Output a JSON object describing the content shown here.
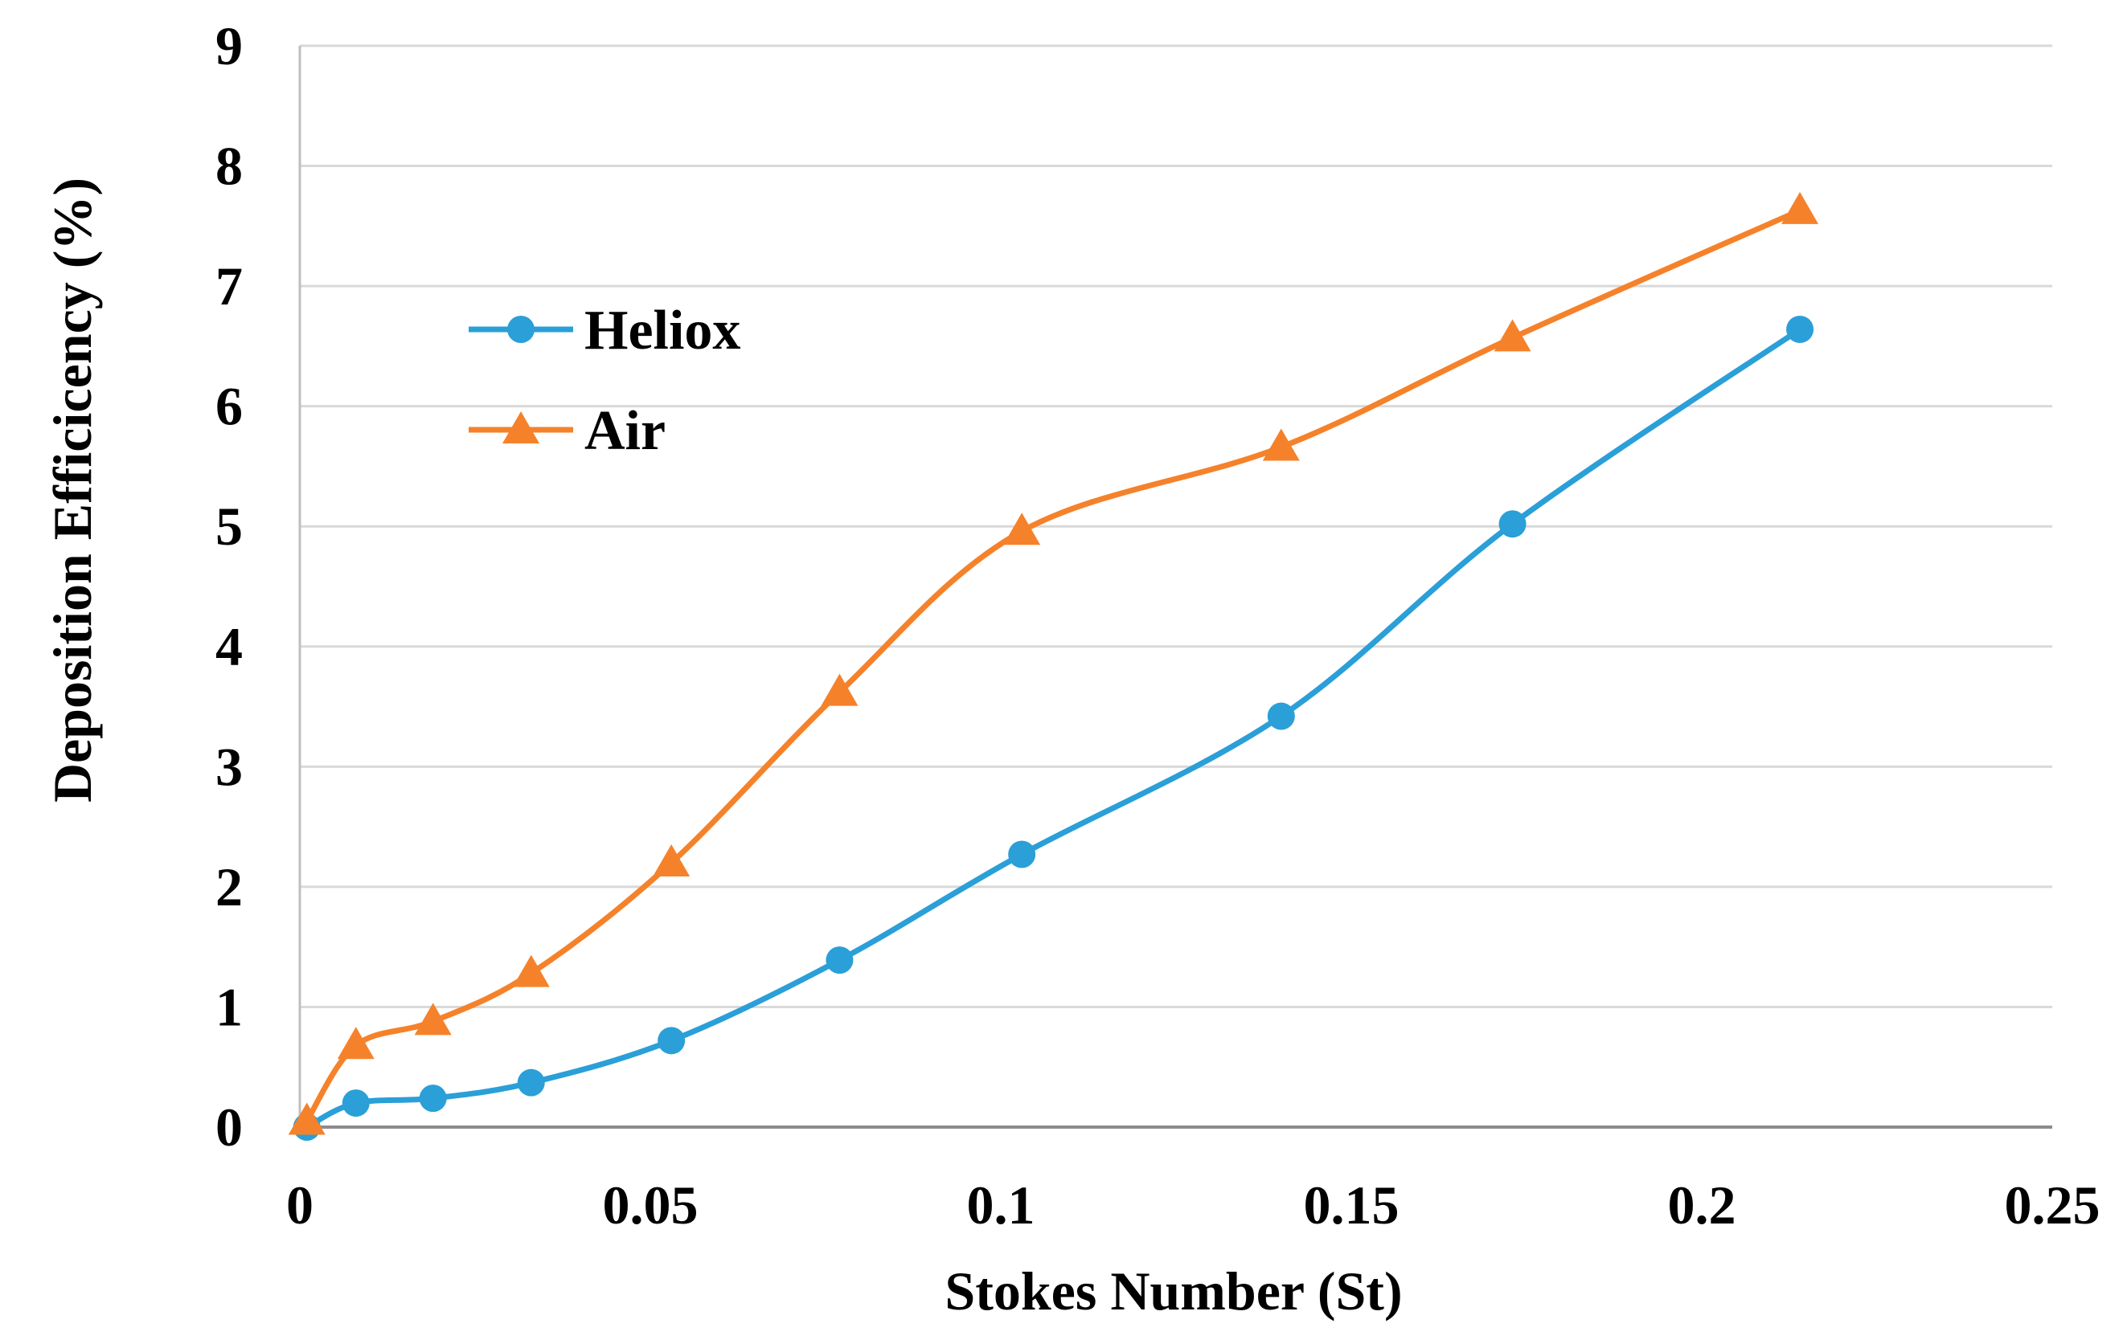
{
  "chart_data": {
    "type": "line",
    "title": "",
    "xlabel": "Stokes Number (St)",
    "ylabel": "Deposition Efficicency (%)",
    "xlim": [
      0,
      0.25
    ],
    "ylim": [
      0,
      9
    ],
    "x_ticks": [
      "0",
      "0.05",
      "0.1",
      "0.15",
      "0.2",
      "0.25"
    ],
    "y_ticks": [
      "0",
      "1",
      "2",
      "3",
      "4",
      "5",
      "6",
      "7",
      "8",
      "9"
    ],
    "x_tick_values": [
      0,
      0.05,
      0.1,
      0.15,
      0.2,
      0.25
    ],
    "y_tick_values": [
      0,
      1,
      2,
      3,
      4,
      5,
      6,
      7,
      8,
      9
    ],
    "grid": true,
    "legend_position": "upper-left",
    "series": [
      {
        "name": "Heliox",
        "color": "#2a9fd8",
        "marker": "circle",
        "x": [
          0.001,
          0.008,
          0.019,
          0.033,
          0.053,
          0.077,
          0.103,
          0.14,
          0.173,
          0.214
        ],
        "y": [
          0.0,
          0.2,
          0.24,
          0.37,
          0.72,
          1.39,
          2.27,
          3.42,
          5.02,
          6.64
        ]
      },
      {
        "name": "Air",
        "color": "#f5822a",
        "marker": "triangle",
        "x": [
          0.001,
          0.008,
          0.019,
          0.033,
          0.053,
          0.077,
          0.103,
          0.14,
          0.173,
          0.214
        ],
        "y": [
          0.05,
          0.68,
          0.88,
          1.28,
          2.2,
          3.62,
          4.96,
          5.66,
          6.57,
          7.63
        ]
      }
    ]
  }
}
